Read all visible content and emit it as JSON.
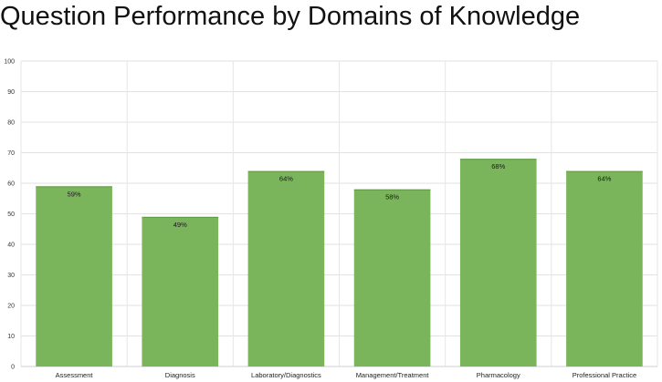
{
  "chart_data": {
    "type": "bar",
    "title": "Question Performance by Domains of Knowledge",
    "xlabel": "",
    "ylabel": "",
    "categories": [
      "Assessment",
      "Diagnosis",
      "Laboratory/Diagnostics",
      "Management/Treatment",
      "Pharmacology",
      "Professional Practice"
    ],
    "values": [
      59,
      49,
      64,
      58,
      68,
      64
    ],
    "data_labels": [
      "59%",
      "49%",
      "64%",
      "58%",
      "68%",
      "64%"
    ],
    "ylim": [
      0,
      100
    ],
    "yticks": [
      "0",
      "10",
      "20",
      "30",
      "40",
      "50",
      "60",
      "70",
      "80",
      "90",
      "100"
    ],
    "grid": true,
    "legend": "none",
    "bar_color": "#7ab55c"
  }
}
